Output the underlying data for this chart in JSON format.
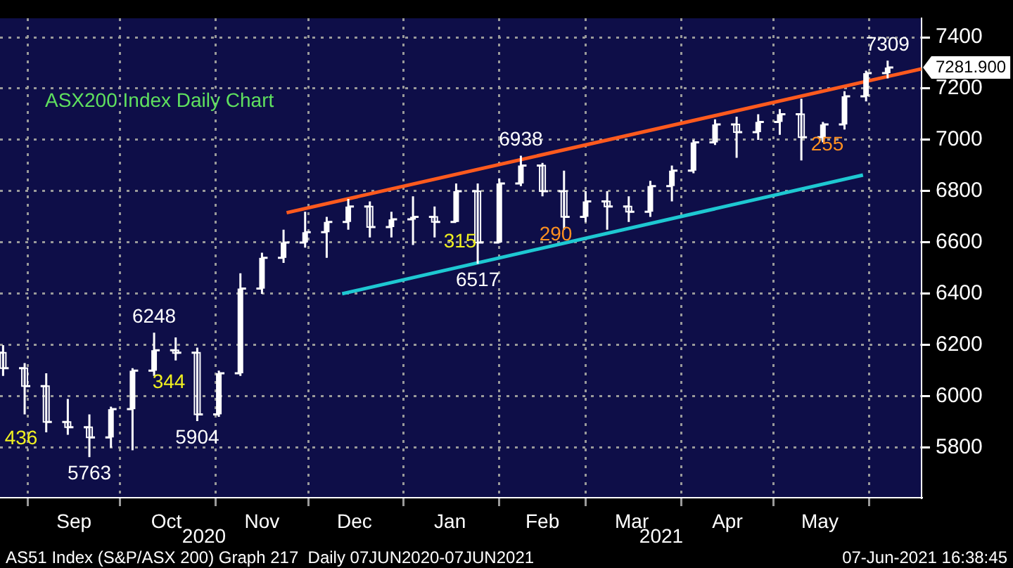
{
  "chart_data": {
    "type": "candlestick",
    "title": "ASX200 Index Daily Chart",
    "x": [
      "2020-08-24",
      "2020-08-31",
      "2020-09-07",
      "2020-09-14",
      "2020-09-21",
      "2020-09-28",
      "2020-10-05",
      "2020-10-12",
      "2020-10-19",
      "2020-10-26",
      "2020-11-02",
      "2020-11-09",
      "2020-11-16",
      "2020-11-23",
      "2020-11-30",
      "2020-12-07",
      "2020-12-14",
      "2020-12-21",
      "2020-12-28",
      "2021-01-04",
      "2021-01-11",
      "2021-01-18",
      "2021-01-25",
      "2021-02-01",
      "2021-02-08",
      "2021-02-15",
      "2021-02-22",
      "2021-03-01",
      "2021-03-08",
      "2021-03-15",
      "2021-03-22",
      "2021-03-29",
      "2021-04-05",
      "2021-04-12",
      "2021-04-19",
      "2021-04-26",
      "2021-05-03",
      "2021-05-10",
      "2021-05-17",
      "2021-05-24",
      "2021-05-31",
      "2021-06-07"
    ],
    "ohlc": [
      [
        6170,
        6200,
        6080,
        6110
      ],
      [
        6110,
        6130,
        5930,
        6040
      ],
      [
        6040,
        6090,
        5860,
        5900
      ],
      [
        5900,
        5990,
        5850,
        5880
      ],
      [
        5880,
        5930,
        5763,
        5840
      ],
      [
        5840,
        5960,
        5800,
        5950
      ],
      [
        5950,
        6110,
        5790,
        6100
      ],
      [
        6100,
        6248,
        6080,
        6180
      ],
      [
        6180,
        6230,
        6140,
        6170
      ],
      [
        6170,
        6190,
        5904,
        5930
      ],
      [
        5930,
        6100,
        5920,
        6090
      ],
      [
        6090,
        6480,
        6080,
        6420
      ],
      [
        6420,
        6560,
        6400,
        6540
      ],
      [
        6540,
        6650,
        6520,
        6600
      ],
      [
        6600,
        6720,
        6580,
        6640
      ],
      [
        6640,
        6700,
        6540,
        6680
      ],
      [
        6680,
        6770,
        6650,
        6740
      ],
      [
        6740,
        6760,
        6620,
        6660
      ],
      [
        6660,
        6720,
        6620,
        6690
      ],
      [
        6690,
        6780,
        6590,
        6700
      ],
      [
        6700,
        6740,
        6620,
        6680
      ],
      [
        6680,
        6830,
        6680,
        6800
      ],
      [
        6800,
        6830,
        6517,
        6600
      ],
      [
        6600,
        6850,
        6600,
        6830
      ],
      [
        6830,
        6938,
        6820,
        6900
      ],
      [
        6900,
        6910,
        6780,
        6800
      ],
      [
        6800,
        6880,
        6650,
        6700
      ],
      [
        6700,
        6800,
        6680,
        6760
      ],
      [
        6760,
        6800,
        6650,
        6740
      ],
      [
        6740,
        6780,
        6680,
        6720
      ],
      [
        6720,
        6840,
        6700,
        6820
      ],
      [
        6820,
        6900,
        6760,
        6880
      ],
      [
        6880,
        7000,
        6870,
        6990
      ],
      [
        6990,
        7080,
        6980,
        7060
      ],
      [
        7060,
        7090,
        6930,
        7030
      ],
      [
        7030,
        7100,
        7000,
        7070
      ],
      [
        7070,
        7120,
        7020,
        7100
      ],
      [
        7100,
        7160,
        6920,
        7010
      ],
      [
        7010,
        7070,
        6990,
        7060
      ],
      [
        7060,
        7190,
        7040,
        7170
      ],
      [
        7170,
        7270,
        7150,
        7260
      ],
      [
        7260,
        7309,
        7240,
        7281.9
      ]
    ],
    "color": "#ffffff",
    "series": [
      {
        "type": "line",
        "color": "#ff5a1e",
        "x": [
          "2020-11-24",
          "2021-06-18"
        ],
        "values": [
          6716,
          7277
        ]
      },
      {
        "type": "line",
        "color": "#1ec8d2",
        "x": [
          "2020-12-12",
          "2021-05-30"
        ],
        "values": [
          6400,
          6863
        ]
      }
    ],
    "xlim": [
      "2020-08-23",
      "2021-06-18"
    ],
    "xticks": [
      {
        "value": "2020-09-01",
        "label": null
      },
      {
        "value": "2020-09-16",
        "label": "Sep"
      },
      {
        "value": "2020-10-01",
        "label": null
      },
      {
        "value": "2020-10-16",
        "label": "Oct"
      },
      {
        "value": "2020-11-01",
        "label": null
      },
      {
        "value": "2020-11-16",
        "label": "Nov"
      },
      {
        "value": "2020-12-01",
        "label": null
      },
      {
        "value": "2020-12-16",
        "label": "Dec"
      },
      {
        "value": "2021-01-01",
        "label": null
      },
      {
        "value": "2021-01-16",
        "label": "Jan"
      },
      {
        "value": "2021-02-01",
        "label": null
      },
      {
        "value": "2021-02-15",
        "label": "Feb"
      },
      {
        "value": "2021-03-01",
        "label": null
      },
      {
        "value": "2021-03-16",
        "label": "Mar"
      },
      {
        "value": "2021-04-01",
        "label": null
      },
      {
        "value": "2021-04-16",
        "label": "Apr"
      },
      {
        "value": "2021-05-01",
        "label": null
      },
      {
        "value": "2021-05-16",
        "label": "May"
      },
      {
        "value": "2021-06-01",
        "label": null
      }
    ],
    "ylim": [
      5605,
      7474
    ],
    "yticks": [
      5800,
      6000,
      6200,
      6400,
      6600,
      6800,
      7000,
      7200,
      7400
    ],
    "grid": true,
    "legend": false,
    "annotations": [
      {
        "text": "6248",
        "x": "2020-10-12",
        "y": 6248
      },
      {
        "text": "5763",
        "x": "2020-09-21",
        "y": 5763
      },
      {
        "text": "5904",
        "x": "2020-10-26",
        "y": 5904
      },
      {
        "text": "6938",
        "x": "2021-02-08",
        "y": 6938
      },
      {
        "text": "6517",
        "x": "2021-01-25",
        "y": 6517
      },
      {
        "text": "7309",
        "x": "2021-06-07",
        "y": 7309
      },
      {
        "text": "7281.900",
        "x": "2021-06-07",
        "y": 7281.9
      },
      "436",
      "344",
      "315",
      "290",
      "255",
      "2020",
      "2021",
      "AS51 Index (S&P/ASX 200) Graph 217  Daily 07JUN2020-07JUN2021",
      "07-Jun-2021 16:38:45"
    ]
  }
}
